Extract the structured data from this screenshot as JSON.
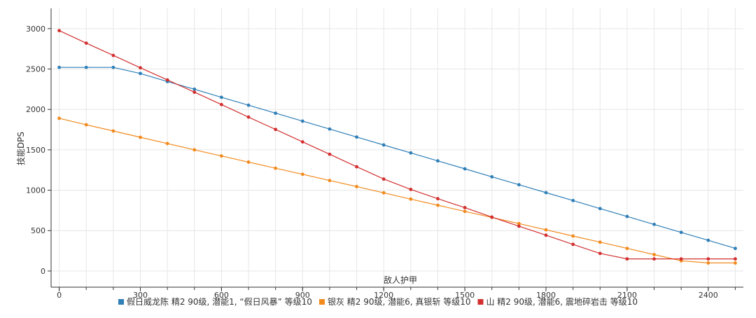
{
  "chart_data": {
    "type": "line",
    "title": "",
    "xlabel": "敌人护甲",
    "ylabel": "技能DPS",
    "xlim": [
      -30,
      2530
    ],
    "ylim": [
      -200,
      3250
    ],
    "x_ticks": [
      0,
      300,
      600,
      900,
      1200,
      1500,
      1800,
      2100,
      2400
    ],
    "x_minor_step": 100,
    "y_ticks": [
      0,
      500,
      1000,
      1500,
      2000,
      2500,
      3000
    ],
    "grid": true,
    "legend_position": "bottom",
    "x": [
      0,
      100,
      200,
      300,
      400,
      500,
      600,
      700,
      800,
      900,
      1000,
      1100,
      1200,
      1300,
      1400,
      1500,
      1600,
      1700,
      1800,
      1900,
      2000,
      2100,
      2200,
      2300,
      2400,
      2500
    ],
    "series": [
      {
        "name": "假日威龙陈 精2 90级, 潜能1, “假日风暴” 等级10",
        "color": "#2f7fb8",
        "values": [
          2520,
          2520,
          2520,
          2445,
          2345,
          2250,
          2150,
          2052,
          1953,
          1855,
          1757,
          1658,
          1560,
          1462,
          1363,
          1265,
          1166,
          1068,
          970,
          872,
          773,
          675,
          577,
          478,
          380,
          280
        ]
      },
      {
        "name": "银灰 精2 90级, 潜能6, 真银斩 等级10",
        "color": "#f28a1c",
        "values": [
          1890,
          1810,
          1733,
          1655,
          1578,
          1500,
          1424,
          1348,
          1272,
          1197,
          1120,
          1045,
          968,
          890,
          814,
          738,
          663,
          587,
          510,
          433,
          357,
          280,
          203,
          127,
          100,
          100
        ]
      },
      {
        "name": "山 精2 90级, 潜能6, 震地碎岩击 等级10",
        "color": "#d32f2f",
        "values": [
          2975,
          2820,
          2668,
          2515,
          2365,
          2213,
          2060,
          1905,
          1752,
          1598,
          1445,
          1290,
          1138,
          1010,
          895,
          785,
          668,
          555,
          443,
          330,
          218,
          150,
          150,
          150,
          150,
          150
        ]
      }
    ]
  }
}
